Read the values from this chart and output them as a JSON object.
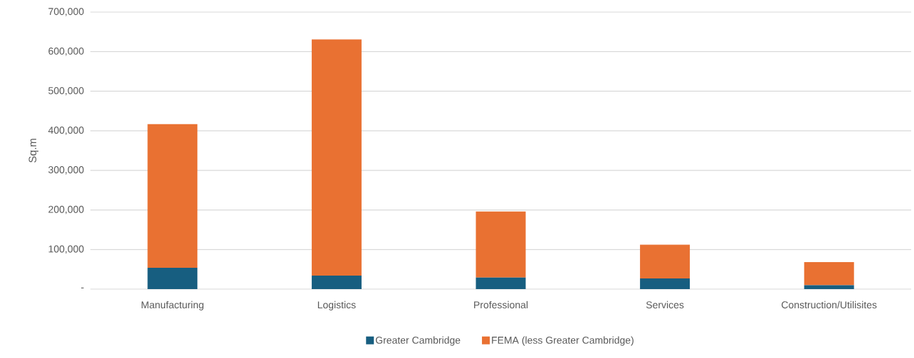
{
  "chart_data": {
    "type": "bar",
    "stacked": true,
    "ylabel": "Sq.m",
    "categories": [
      "Manufacturing",
      "Logistics",
      "Professional",
      "Services",
      "Construction/Utilisites"
    ],
    "series": [
      {
        "name": "Greater Cambridge",
        "color": "#175e80",
        "values": [
          54000,
          34000,
          29000,
          27000,
          10000
        ]
      },
      {
        "name": "FEMA (less Greater Cambridge)",
        "color": "#e97132",
        "values": [
          363000,
          597000,
          167000,
          85000,
          58000
        ]
      }
    ],
    "ylim": [
      0,
      700000
    ],
    "yticks": [
      {
        "value": 0,
        "label": "-"
      },
      {
        "value": 100000,
        "label": "100,000"
      },
      {
        "value": 200000,
        "label": "200,000"
      },
      {
        "value": 300000,
        "label": "300,000"
      },
      {
        "value": 400000,
        "label": "400,000"
      },
      {
        "value": 500000,
        "label": "500,000"
      },
      {
        "value": 600000,
        "label": "600,000"
      },
      {
        "value": 700000,
        "label": "700,000"
      }
    ],
    "grid": "y",
    "legend": "bottom"
  }
}
